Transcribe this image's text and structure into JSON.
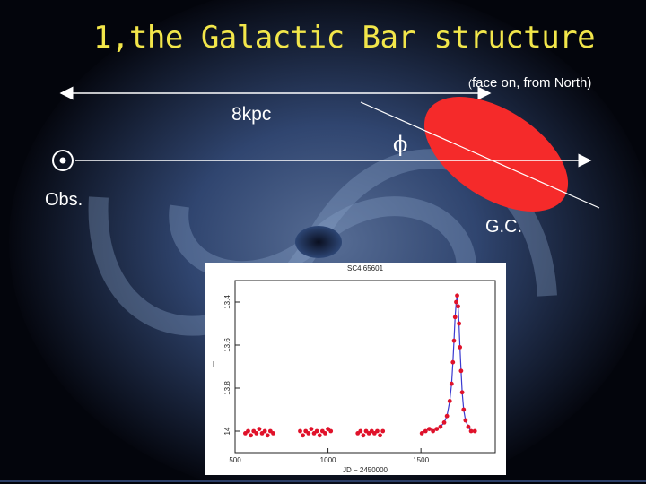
{
  "slide": {
    "title": "1,the Galactic Bar structure",
    "subtitle_paren": "(",
    "subtitle": "face on, from North)",
    "distance_label": "8kpc",
    "observer_label": "Obs.",
    "gc_label": "G.C.",
    "angle_symbol": "ϕ",
    "bar_color": "#f52a2a",
    "title_color": "#f2e64a"
  },
  "chart_data": {
    "type": "scatter",
    "title": "SC4 65601",
    "xlabel": "JD − 2450000",
    "ylabel": "I",
    "xlim": [
      500,
      1900
    ],
    "ylim": [
      14.1,
      13.3
    ],
    "y_inverted": true,
    "xticks": [
      "500",
      "1000",
      "1500"
    ],
    "yticks": [
      "13.4",
      "13.6",
      "13.8",
      "14"
    ],
    "series": [
      {
        "marker_color": "#e0122a",
        "points": [
          [
            555,
            14.01
          ],
          [
            570,
            14.0
          ],
          [
            585,
            14.02
          ],
          [
            600,
            14.0
          ],
          [
            615,
            14.01
          ],
          [
            630,
            13.99
          ],
          [
            645,
            14.01
          ],
          [
            660,
            14.0
          ],
          [
            675,
            14.02
          ],
          [
            690,
            14.0
          ],
          [
            705,
            14.01
          ],
          [
            850,
            14.0
          ],
          [
            865,
            14.02
          ],
          [
            880,
            14.0
          ],
          [
            895,
            14.01
          ],
          [
            910,
            13.99
          ],
          [
            925,
            14.01
          ],
          [
            940,
            14.0
          ],
          [
            955,
            14.02
          ],
          [
            970,
            14.0
          ],
          [
            985,
            14.01
          ],
          [
            1000,
            13.99
          ],
          [
            1015,
            14.0
          ],
          [
            1160,
            14.01
          ],
          [
            1175,
            14.0
          ],
          [
            1190,
            14.02
          ],
          [
            1205,
            14.0
          ],
          [
            1220,
            14.01
          ],
          [
            1235,
            14.0
          ],
          [
            1250,
            14.01
          ],
          [
            1265,
            14.0
          ],
          [
            1280,
            14.02
          ],
          [
            1295,
            14.0
          ],
          [
            1505,
            14.01
          ],
          [
            1525,
            14.0
          ],
          [
            1545,
            13.99
          ],
          [
            1565,
            14.0
          ],
          [
            1585,
            13.99
          ],
          [
            1605,
            13.98
          ],
          [
            1625,
            13.96
          ],
          [
            1640,
            13.93
          ],
          [
            1655,
            13.86
          ],
          [
            1665,
            13.78
          ],
          [
            1672,
            13.68
          ],
          [
            1678,
            13.58
          ],
          [
            1684,
            13.47
          ],
          [
            1690,
            13.4
          ],
          [
            1695,
            13.37
          ],
          [
            1700,
            13.42
          ],
          [
            1705,
            13.5
          ],
          [
            1710,
            13.61
          ],
          [
            1716,
            13.72
          ],
          [
            1722,
            13.82
          ],
          [
            1730,
            13.9
          ],
          [
            1740,
            13.95
          ],
          [
            1755,
            13.98
          ],
          [
            1770,
            14.0
          ],
          [
            1790,
            14.0
          ]
        ]
      }
    ]
  }
}
